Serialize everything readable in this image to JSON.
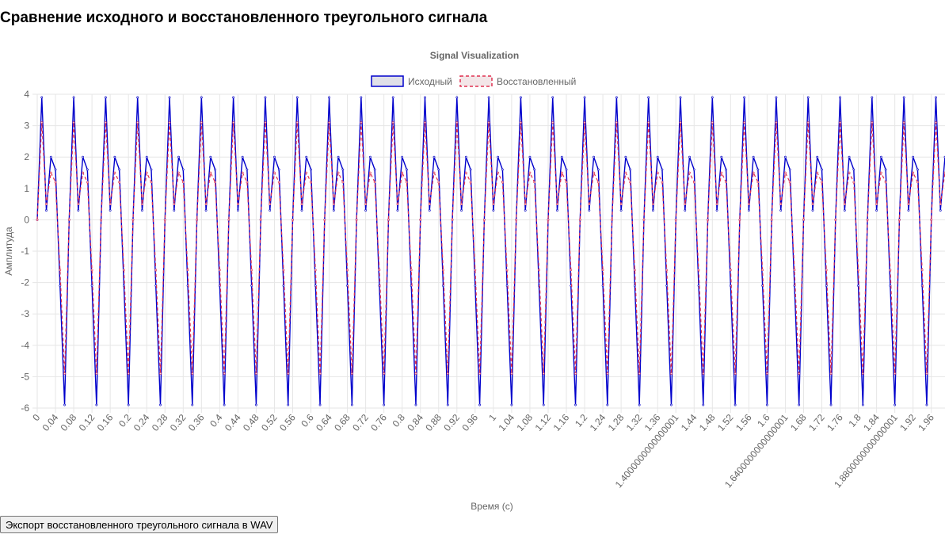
{
  "page": {
    "heading": "Сравнение исходного и восстановленного треугольного сигнала",
    "export_button": "Экспорт восстановленного треугольного сигнала в WAV"
  },
  "chart_data": {
    "type": "line",
    "title": "Signal Visualization",
    "xlabel": "Время (с)",
    "ylabel": "Амплитуда",
    "ylim": [
      -6,
      4
    ],
    "yticks": [
      4,
      3,
      2,
      1,
      0,
      -1,
      -2,
      -3,
      -4,
      -5,
      -6
    ],
    "xticks": [
      "0",
      "0.04",
      "0.08",
      "0.12",
      "0.16",
      "0.2",
      "0.24",
      "0.28",
      "0.32",
      "0.36",
      "0.4",
      "0.44",
      "0.48",
      "0.52",
      "0.56",
      "0.6",
      "0.64",
      "0.68",
      "0.72",
      "0.76",
      "0.8",
      "0.84",
      "0.88",
      "0.92",
      "0.96",
      "1",
      "1.04",
      "1.08",
      "1.12",
      "1.16",
      "1.2",
      "1.24",
      "1.28",
      "1.32",
      "1.36",
      "1.4000000000000001",
      "1.44",
      "1.48",
      "1.52",
      "1.56",
      "1.6",
      "1.6400000000000001",
      "1.68",
      "1.72",
      "1.76",
      "1.8",
      "1.84",
      "1.8800000000000001",
      "1.92",
      "1.96"
    ],
    "x_step": 0.01,
    "x_max": 1.99,
    "signal_period": 0.05,
    "legend_position": "top",
    "grid": true,
    "series": [
      {
        "name": "Исходный",
        "color": "#0000cc",
        "fill": "#e0e0e8",
        "dash": false,
        "y_pattern": [
          0,
          3.9,
          0.3,
          2.0,
          1.6,
          -2.1,
          -5.9
        ]
      },
      {
        "name": "Восстановленный",
        "color": "#e03050",
        "fill": "#f3e6e8",
        "dash": true,
        "y_pattern": [
          0,
          3.1,
          0.5,
          1.5,
          1.2,
          -1.6,
          -4.9
        ]
      }
    ]
  }
}
